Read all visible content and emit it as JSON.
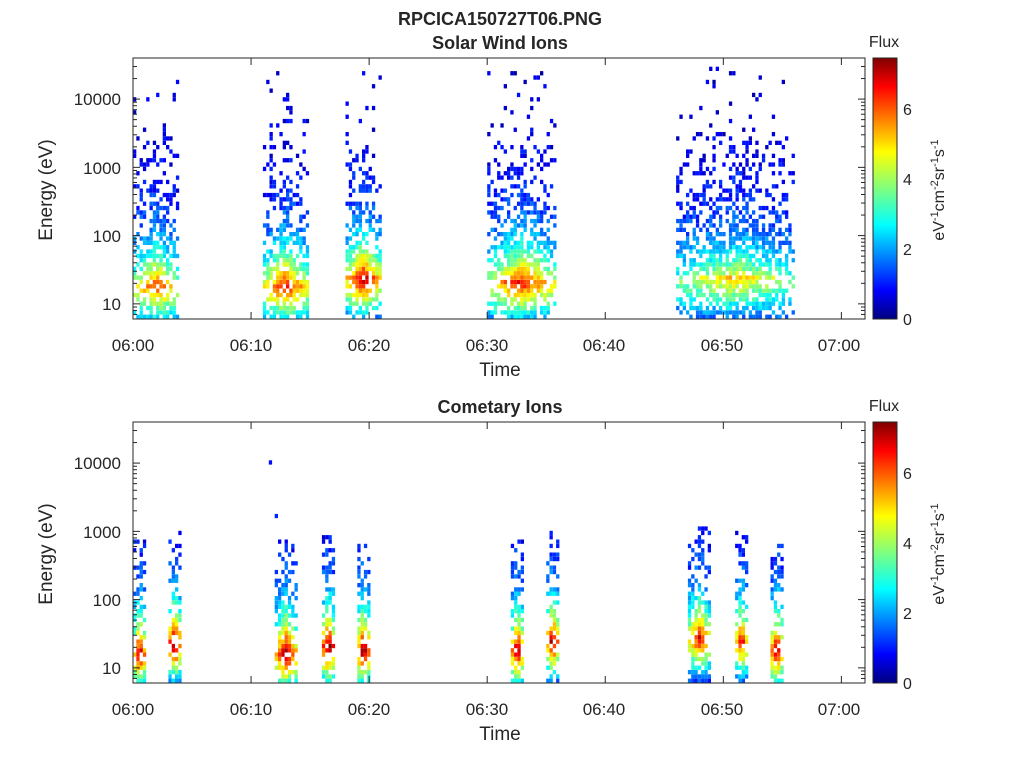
{
  "figure": {
    "title": "RPCICA150727T06.PNG"
  },
  "colorbar": {
    "label": "Flux",
    "unit_text": "eV-1cm-2sr-1s-1",
    "unit_parts": [
      {
        "t": "eV",
        "sup": false
      },
      {
        "t": "-1",
        "sup": true
      },
      {
        "t": "cm",
        "sup": false
      },
      {
        "t": "-2",
        "sup": true
      },
      {
        "t": "sr",
        "sup": false
      },
      {
        "t": "-1",
        "sup": true
      },
      {
        "t": "s",
        "sup": false
      },
      {
        "t": "-1",
        "sup": true
      }
    ],
    "colormap": "jet",
    "range": [
      0,
      7.4
    ],
    "ticks": [
      "0",
      "2",
      "4",
      "6"
    ]
  },
  "chart_data": [
    {
      "type": "heatmap",
      "title": "Solar Wind Ions",
      "xlabel": "Time",
      "ylabel": "Energy (eV)",
      "yscale": "log",
      "ylim": [
        6,
        40000
      ],
      "xlim_minutes": [
        0,
        62
      ],
      "xticks": [
        "06:00",
        "06:10",
        "06:20",
        "06:30",
        "06:40",
        "06:50",
        "07:00"
      ],
      "yticks": [
        "10",
        "100",
        "1000",
        "10000"
      ],
      "value_range": [
        0,
        7.4
      ],
      "bursts": [
        {
          "start": "06:00",
          "end": "06:04",
          "peak_energy_eV": 20,
          "peak_flux": 5.2,
          "max_energy_eV": 20000
        },
        {
          "start": "06:11",
          "end": "06:15",
          "peak_energy_eV": 20,
          "peak_flux": 5.6,
          "max_energy_eV": 25000
        },
        {
          "start": "06:18",
          "end": "06:21",
          "peak_energy_eV": 25,
          "peak_flux": 6.0,
          "max_energy_eV": 25000
        },
        {
          "start": "06:30",
          "end": "06:36",
          "peak_energy_eV": 22,
          "peak_flux": 5.5,
          "max_energy_eV": 25000
        },
        {
          "start": "06:46",
          "end": "06:56",
          "peak_energy_eV": 25,
          "peak_flux": 4.0,
          "max_energy_eV": 30000
        }
      ]
    },
    {
      "type": "heatmap",
      "title": "Cometary Ions",
      "xlabel": "Time",
      "ylabel": "Energy (eV)",
      "yscale": "log",
      "ylim": [
        6,
        40000
      ],
      "xlim_minutes": [
        0,
        62
      ],
      "xticks": [
        "06:00",
        "06:10",
        "06:20",
        "06:30",
        "06:40",
        "06:50",
        "07:00"
      ],
      "yticks": [
        "10",
        "100",
        "1000",
        "10000"
      ],
      "value_range": [
        0,
        7.4
      ],
      "bursts": [
        {
          "start": "06:00",
          "end": "06:01",
          "peak_energy_eV": 18,
          "peak_flux": 6.4
        },
        {
          "start": "06:03",
          "end": "06:04",
          "peak_energy_eV": 25,
          "peak_flux": 7.0
        },
        {
          "start": "06:12",
          "end": "06:14",
          "peak_energy_eV": 18,
          "peak_flux": 6.5
        },
        {
          "start": "06:16",
          "end": "06:17",
          "peak_energy_eV": 22,
          "peak_flux": 7.0
        },
        {
          "start": "06:19",
          "end": "06:20",
          "peak_energy_eV": 20,
          "peak_flux": 7.0
        },
        {
          "start": "06:32",
          "end": "06:33",
          "peak_energy_eV": 20,
          "peak_flux": 6.5
        },
        {
          "start": "06:35",
          "end": "06:36",
          "peak_energy_eV": 27,
          "peak_flux": 6.5
        },
        {
          "start": "06:47",
          "end": "06:49",
          "peak_energy_eV": 30,
          "peak_flux": 5.8
        },
        {
          "start": "06:51",
          "end": "06:52",
          "peak_energy_eV": 27,
          "peak_flux": 5.8
        },
        {
          "start": "06:54",
          "end": "06:55",
          "peak_energy_eV": 20,
          "peak_flux": 6.5
        }
      ],
      "sparse_points": [
        {
          "time": "06:11.5",
          "energy_eV": 11000,
          "flux": 1.0
        },
        {
          "time": "06:12",
          "energy_eV": 1800,
          "flux": 1.2
        }
      ]
    }
  ]
}
